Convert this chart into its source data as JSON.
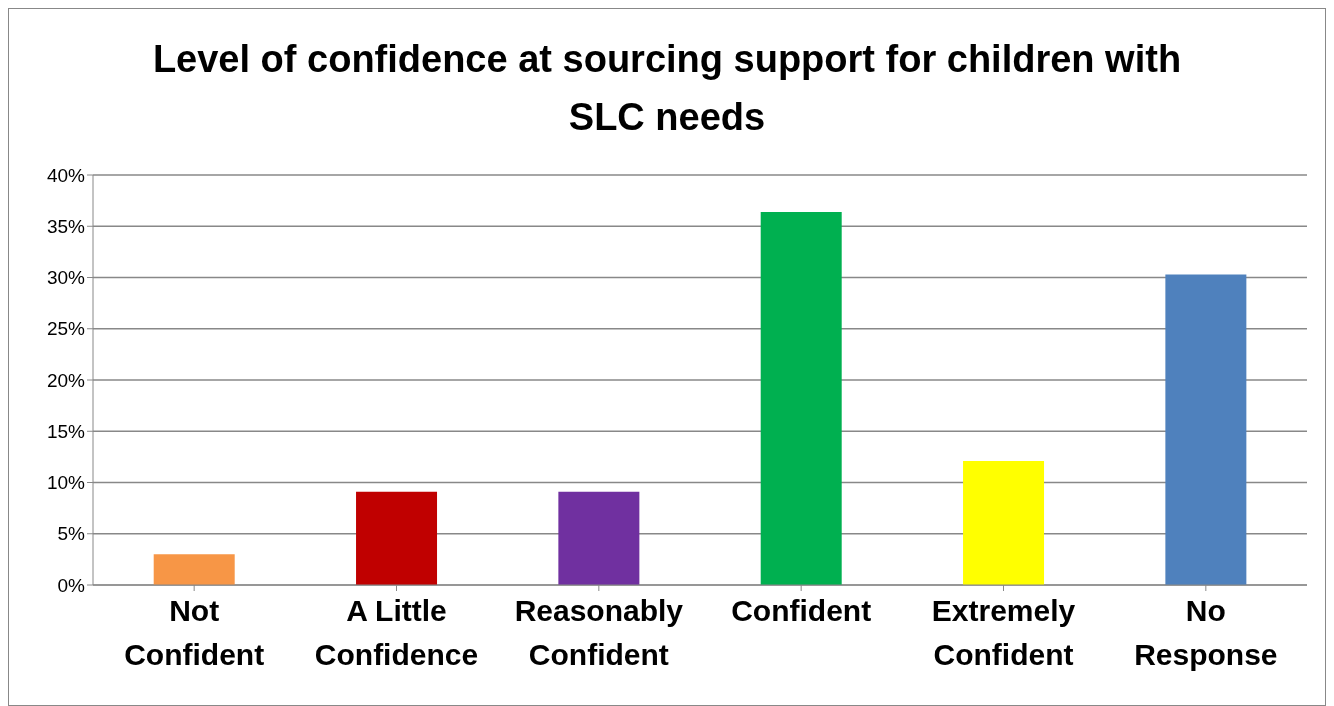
{
  "chart_data": {
    "type": "bar",
    "title": "Level of confidence at sourcing support for children with SLC needs",
    "categories": [
      "Not Confident",
      "A Little Confidence",
      "Reasonably Confident",
      "Confident",
      "Extremely Confident",
      "No Response"
    ],
    "values": [
      3.0,
      9.1,
      9.1,
      36.4,
      12.1,
      30.3
    ],
    "colors": [
      "#f79646",
      "#c00000",
      "#7030a0",
      "#00b050",
      "#ffff00",
      "#4f81bd"
    ],
    "ylim": [
      0,
      40
    ],
    "yticks": [
      {
        "value": 0,
        "label": "0%"
      },
      {
        "value": 5,
        "label": "5%"
      },
      {
        "value": 10,
        "label": "10%"
      },
      {
        "value": 15,
        "label": "15%"
      },
      {
        "value": 20,
        "label": "20%"
      },
      {
        "value": 25,
        "label": "25%"
      },
      {
        "value": 30,
        "label": "30%"
      },
      {
        "value": 35,
        "label": "35%"
      },
      {
        "value": 40,
        "label": "40%"
      }
    ],
    "grid": "y",
    "legend": false
  }
}
